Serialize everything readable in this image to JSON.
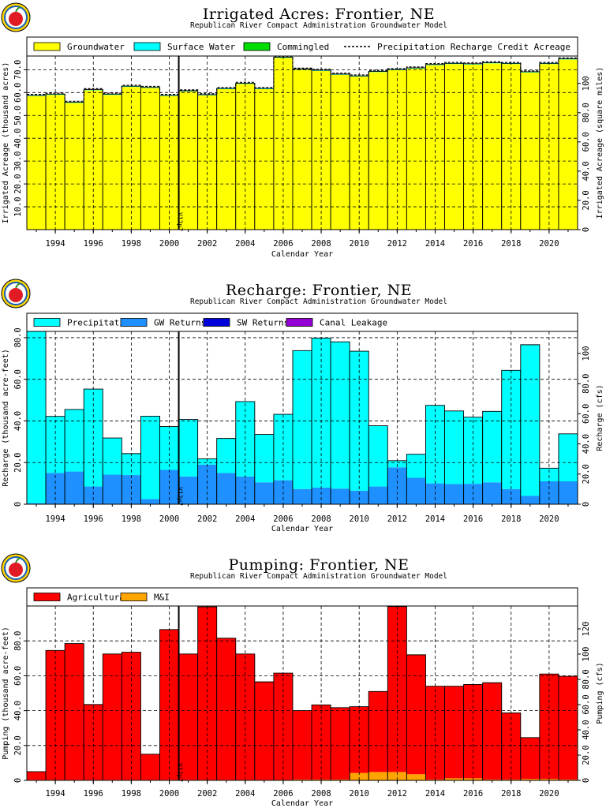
{
  "colors": {
    "groundwater": "#ffff00",
    "surface_water": "#00ffff",
    "commingled": "#00dd00",
    "precipitation": "#00ffff",
    "gw_returns": "#1e90ff",
    "sw_returns": "#0000dd",
    "canal_leakage": "#9400d3",
    "agricultural": "#ff0000",
    "mi": "#ffa500"
  },
  "logo_icon": "apple-logo-icon",
  "chart_data": [
    {
      "type": "bar",
      "title": "Irrigated  Acres:  Frontier,  NE",
      "subtitle": "Republican  River  Compact  Administration  Groundwater  Model",
      "xlabel": "Calendar  Year",
      "ylabel": "Irrigated  Acreage  (thousand  acres)",
      "ylabel_right": "Irrigated  Acreage  (square  miles)",
      "xlim": [
        1992.5,
        2021.5
      ],
      "ylim": [
        0,
        76
      ],
      "yticks": [
        "10.0",
        "20.0",
        "30.0",
        "40.0",
        "50.0",
        "60.0",
        "70.0"
      ],
      "ytick_values": [
        10,
        20,
        30,
        40,
        50,
        60,
        70
      ],
      "yticks_right": [
        "0",
        "20.0",
        "40.0",
        "60.0",
        "80.0",
        "100"
      ],
      "ytick_right_values": [
        0,
        12.8,
        25.6,
        38.4,
        51.2,
        64
      ],
      "xticks": [
        "1994",
        "1996",
        "1998",
        "2000",
        "2002",
        "2004",
        "2006",
        "2008",
        "2010",
        "2012",
        "2014",
        "2016",
        "2018",
        "2020"
      ],
      "marker": {
        "x": 2000.5,
        "label": "V12p7"
      },
      "legend": [
        "Groundwater",
        "Surface  Water",
        "Commingled",
        "Precipitation  Recharge  Credit  Acreage"
      ],
      "grid": true,
      "x": [
        1993,
        1994,
        1995,
        1996,
        1997,
        1998,
        1999,
        2000,
        2001,
        2002,
        2003,
        2004,
        2005,
        2006,
        2007,
        2008,
        2009,
        2010,
        2011,
        2012,
        2013,
        2014,
        2015,
        2016,
        2017,
        2018,
        2019,
        2020,
        2021
      ],
      "series": [
        {
          "name": "Groundwater",
          "values": [
            58.5,
            59.0,
            55.5,
            61.0,
            59.0,
            62.5,
            62.0,
            58.5,
            60.5,
            58.8,
            61.5,
            63.8,
            61.5,
            75.2,
            70.0,
            69.5,
            67.8,
            67.0,
            69.0,
            69.8,
            70.5,
            72.0,
            72.5,
            72.3,
            72.8,
            72.5,
            68.8,
            72.5,
            74.5
          ]
        },
        {
          "name": "Surface  Water",
          "values": [
            0.3,
            0.3,
            0.3,
            0.3,
            0.3,
            0.3,
            0.3,
            0.3,
            0.3,
            0.3,
            0.3,
            0.3,
            0.3,
            0.3,
            0.3,
            0.3,
            0.3,
            0.3,
            0.3,
            0.3,
            0.3,
            0.3,
            0.3,
            0.3,
            0.3,
            0.3,
            0.3,
            0.3,
            0.3
          ]
        },
        {
          "name": "Commingled",
          "values": [
            0,
            0,
            0,
            0,
            0,
            0,
            0,
            0,
            0,
            0,
            0,
            0,
            0,
            0,
            0,
            0,
            0,
            0,
            0,
            0,
            0,
            0,
            0,
            0,
            0,
            0,
            0,
            0,
            0
          ]
        }
      ],
      "line": {
        "name": "Precipitation  Recharge  Credit  Acreage",
        "values": [
          59.2,
          59.7,
          56.2,
          61.7,
          59.7,
          63.2,
          62.7,
          59.2,
          61.2,
          59.5,
          62.2,
          64.5,
          62.2,
          75.9,
          70.7,
          70.2,
          68.5,
          67.7,
          69.7,
          70.5,
          71.2,
          72.7,
          73.2,
          73.0,
          73.5,
          73.2,
          69.5,
          73.2,
          75.2
        ]
      }
    },
    {
      "type": "bar",
      "title": "Recharge:  Frontier,  NE",
      "subtitle": "Republican  River  Compact  Administration  Groundwater  Model",
      "xlabel": "Calendar  Year",
      "ylabel": "Recharge  (thousand  acre-feet)",
      "ylabel_right": "Recharge  (cfs)",
      "xlim": [
        1992.5,
        2021.5
      ],
      "ylim": [
        0,
        83
      ],
      "yticks": [
        "0",
        "20.0",
        "40.0",
        "60.0",
        "80.0"
      ],
      "ytick_values": [
        0,
        20,
        40,
        60,
        80
      ],
      "yticks_right": [
        "0",
        "20.0",
        "40.0",
        "60.0",
        "80.0",
        "100"
      ],
      "ytick_right_values": [
        0,
        14.48,
        28.96,
        43.44,
        57.92,
        72.4
      ],
      "xticks": [
        "1994",
        "1996",
        "1998",
        "2000",
        "2002",
        "2004",
        "2006",
        "2008",
        "2010",
        "2012",
        "2014",
        "2016",
        "2018",
        "2020"
      ],
      "marker": {
        "x": 2000.5,
        "label": "V12p7"
      },
      "legend": [
        "Precipitation",
        "GW  Returns",
        "SW  Returns",
        "Canal  Leakage"
      ],
      "grid": true,
      "x": [
        1993,
        1994,
        1995,
        1996,
        1997,
        1998,
        1999,
        2000,
        2001,
        2002,
        2003,
        2004,
        2005,
        2006,
        2007,
        2008,
        2009,
        2010,
        2011,
        2012,
        2013,
        2014,
        2015,
        2016,
        2017,
        2018,
        2019,
        2020,
        2021
      ],
      "series": [
        {
          "name": "GW  Returns",
          "values": [
            0.5,
            15.0,
            15.7,
            8.5,
            14.2,
            14.0,
            2.5,
            16.5,
            13.3,
            19.0,
            15.0,
            13.3,
            10.5,
            11.5,
            7.3,
            8.0,
            7.5,
            6.5,
            8.5,
            17.7,
            12.7,
            10.0,
            9.7,
            9.8,
            10.5,
            7.3,
            4.0,
            11.0,
            11.0
          ]
        },
        {
          "name": "Precipitation",
          "values": [
            82.5,
            27.2,
            29.8,
            46.8,
            17.6,
            10.3,
            39.8,
            20.8,
            27.4,
            2.8,
            16.6,
            36.0,
            23.0,
            31.7,
            66.5,
            71.8,
            70.5,
            67.0,
            29.2,
            3.2,
            11.3,
            37.5,
            35.1,
            32.0,
            34.1,
            57.0,
            72.6,
            6.3,
            22.8
          ]
        },
        {
          "name": "SW  Returns",
          "values": [
            0,
            0,
            0,
            0,
            0,
            0,
            0,
            0,
            0,
            0,
            0,
            0,
            0,
            0,
            0,
            0,
            0,
            0,
            0,
            0,
            0,
            0,
            0,
            0,
            0,
            0,
            0,
            0,
            0
          ]
        },
        {
          "name": "Canal  Leakage",
          "values": [
            0,
            0,
            0,
            0,
            0,
            0,
            0,
            0,
            0,
            0,
            0,
            0,
            0,
            0,
            0,
            0,
            0,
            0,
            0,
            0,
            0,
            0,
            0,
            0,
            0,
            0,
            0,
            0,
            0
          ]
        }
      ]
    },
    {
      "type": "bar",
      "title": "Pumping:  Frontier,  NE",
      "subtitle": "Republican  River  Compact  Administration  Groundwater  Model",
      "xlabel": "Calendar  Year",
      "ylabel": "Pumping  (thousand  acre-feet)",
      "ylabel_right": "Pumping  (cfs)",
      "xlim": [
        1992.5,
        2021.5
      ],
      "ylim": [
        0,
        100
      ],
      "yticks": [
        "0",
        "20.0",
        "40.0",
        "60.0",
        "80.0"
      ],
      "ytick_values": [
        0,
        20,
        40,
        60,
        80
      ],
      "yticks_right": [
        "0",
        "20.0",
        "40.0",
        "60.0",
        "80.0",
        "100",
        "120"
      ],
      "ytick_right_values": [
        0,
        14.48,
        28.96,
        43.44,
        57.92,
        72.4,
        86.88
      ],
      "xticks": [
        "1994",
        "1996",
        "1998",
        "2000",
        "2002",
        "2004",
        "2006",
        "2008",
        "2010",
        "2012",
        "2014",
        "2016",
        "2018",
        "2020"
      ],
      "marker": {
        "x": 2000.5,
        "label": "V12p7"
      },
      "legend": [
        "Agricultural",
        "M&I"
      ],
      "grid": true,
      "x": [
        1993,
        1994,
        1995,
        1996,
        1997,
        1998,
        1999,
        2000,
        2001,
        2002,
        2003,
        2004,
        2005,
        2006,
        2007,
        2008,
        2009,
        2010,
        2011,
        2012,
        2013,
        2014,
        2015,
        2016,
        2017,
        2018,
        2019,
        2020,
        2021
      ],
      "series": [
        {
          "name": "M&I",
          "values": [
            0.3,
            0.3,
            0.3,
            0.3,
            0.3,
            0.3,
            0.3,
            0.3,
            0.3,
            0.3,
            0.3,
            0.3,
            0.3,
            0.3,
            0.5,
            0.5,
            0.5,
            4.3,
            4.8,
            4.8,
            3.5,
            0.5,
            1.2,
            1.2,
            0.5,
            0.5,
            0.8,
            0.8,
            0.5
          ]
        },
        {
          "name": "Agricultural",
          "values": [
            4.7,
            74.2,
            78.2,
            43.2,
            72.2,
            73.2,
            14.7,
            86.2,
            72.2,
            99.2,
            81.2,
            72.2,
            56.2,
            61.2,
            39.5,
            42.8,
            41.2,
            38.0,
            46.2,
            94.9,
            68.5,
            53.5,
            52.8,
            53.8,
            55.5,
            38.2,
            23.7,
            60.2,
            59.2
          ]
        }
      ]
    }
  ]
}
